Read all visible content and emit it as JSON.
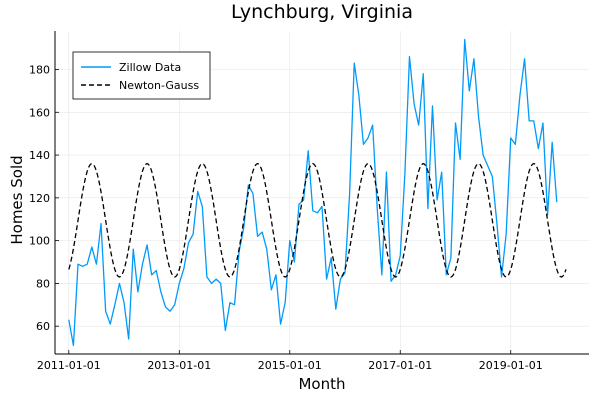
{
  "chart_data": {
    "type": "line",
    "title": "Lynchburg, Virginia",
    "xlabel": "Month",
    "ylabel": "Homes Sold",
    "x_range": [
      "2010-10-01",
      "2020-06-01"
    ],
    "ylim": [
      47,
      198
    ],
    "x_ticks": [
      "2011-01-01",
      "2013-01-01",
      "2015-01-01",
      "2017-01-01",
      "2019-01-01"
    ],
    "y_ticks": [
      60,
      80,
      100,
      120,
      140,
      160,
      180
    ],
    "grid": true,
    "legend_position": "top-left",
    "series": [
      {
        "name": "Zillow Data",
        "color": "#009AFA",
        "style": "solid",
        "start": "2011-01-01",
        "frequency": "monthly",
        "values": [
          63,
          51,
          89,
          88,
          89,
          97,
          89,
          108,
          67,
          61,
          70,
          80,
          71,
          54,
          96,
          76,
          89,
          98,
          84,
          86,
          76,
          69,
          67,
          70,
          80,
          87,
          99,
          103,
          123,
          116,
          83,
          80,
          82,
          80,
          58,
          71,
          70,
          95,
          106,
          126,
          122,
          102,
          104,
          96,
          77,
          84,
          61,
          71,
          100,
          90,
          117,
          119,
          142,
          114,
          113,
          116,
          82,
          92,
          68,
          82,
          85,
          122,
          183,
          168,
          145,
          148,
          154,
          115,
          84,
          132,
          81,
          84,
          93,
          131,
          186,
          164,
          154,
          178,
          115,
          163,
          119,
          132,
          84,
          92,
          155,
          138,
          194,
          170,
          185,
          158,
          140,
          135,
          130,
          108,
          83,
          103,
          148,
          145,
          168,
          185,
          156,
          156,
          143,
          155,
          112,
          146,
          118
        ]
      },
      {
        "name": "Newton-Gauss",
        "color": "#000000",
        "style": "dashed",
        "start": "2011-01-01",
        "frequency": "monthly",
        "min": 83,
        "max": 136,
        "period_months": 12,
        "peak_month_offset": 5,
        "months": 108
      }
    ]
  }
}
